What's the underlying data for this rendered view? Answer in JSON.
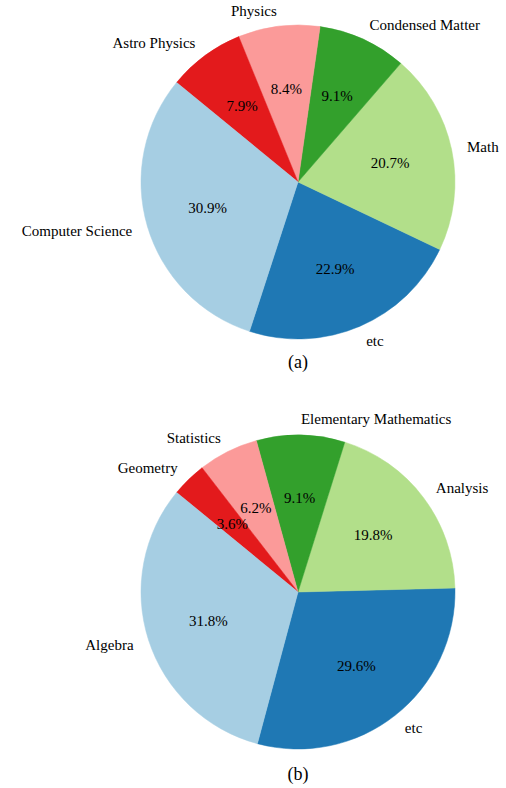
{
  "chart_data": [
    {
      "type": "pie",
      "title": "(a)",
      "categories": [
        "etc",
        "Math",
        "Condensed Matter",
        "Physics",
        "Astro Physics",
        "Computer Science"
      ],
      "values": [
        22.9,
        20.7,
        9.1,
        8.4,
        7.9,
        30.9
      ],
      "value_labels": [
        "22.9%",
        "20.7%",
        "9.1%",
        "8.4%",
        "7.9%",
        "30.9%"
      ],
      "colors": [
        "#1f78b4",
        "#b2df8a",
        "#33a02c",
        "#fb9a99",
        "#e31a1c",
        "#a6cee3"
      ],
      "data_labels": true
    },
    {
      "type": "pie",
      "title": "(b)",
      "categories": [
        "etc",
        "Analysis",
        "Elementary Mathematics",
        "Statistics",
        "Geometry",
        "Algebra"
      ],
      "values": [
        29.6,
        19.8,
        9.1,
        6.2,
        3.6,
        31.8
      ],
      "value_labels": [
        "29.6%",
        "19.8%",
        "9.1%",
        "6.2%",
        "3.6%",
        "31.8%"
      ],
      "colors": [
        "#1f78b4",
        "#b2df8a",
        "#33a02c",
        "#fb9a99",
        "#e31a1c",
        "#a6cee3"
      ],
      "data_labels": true
    }
  ]
}
